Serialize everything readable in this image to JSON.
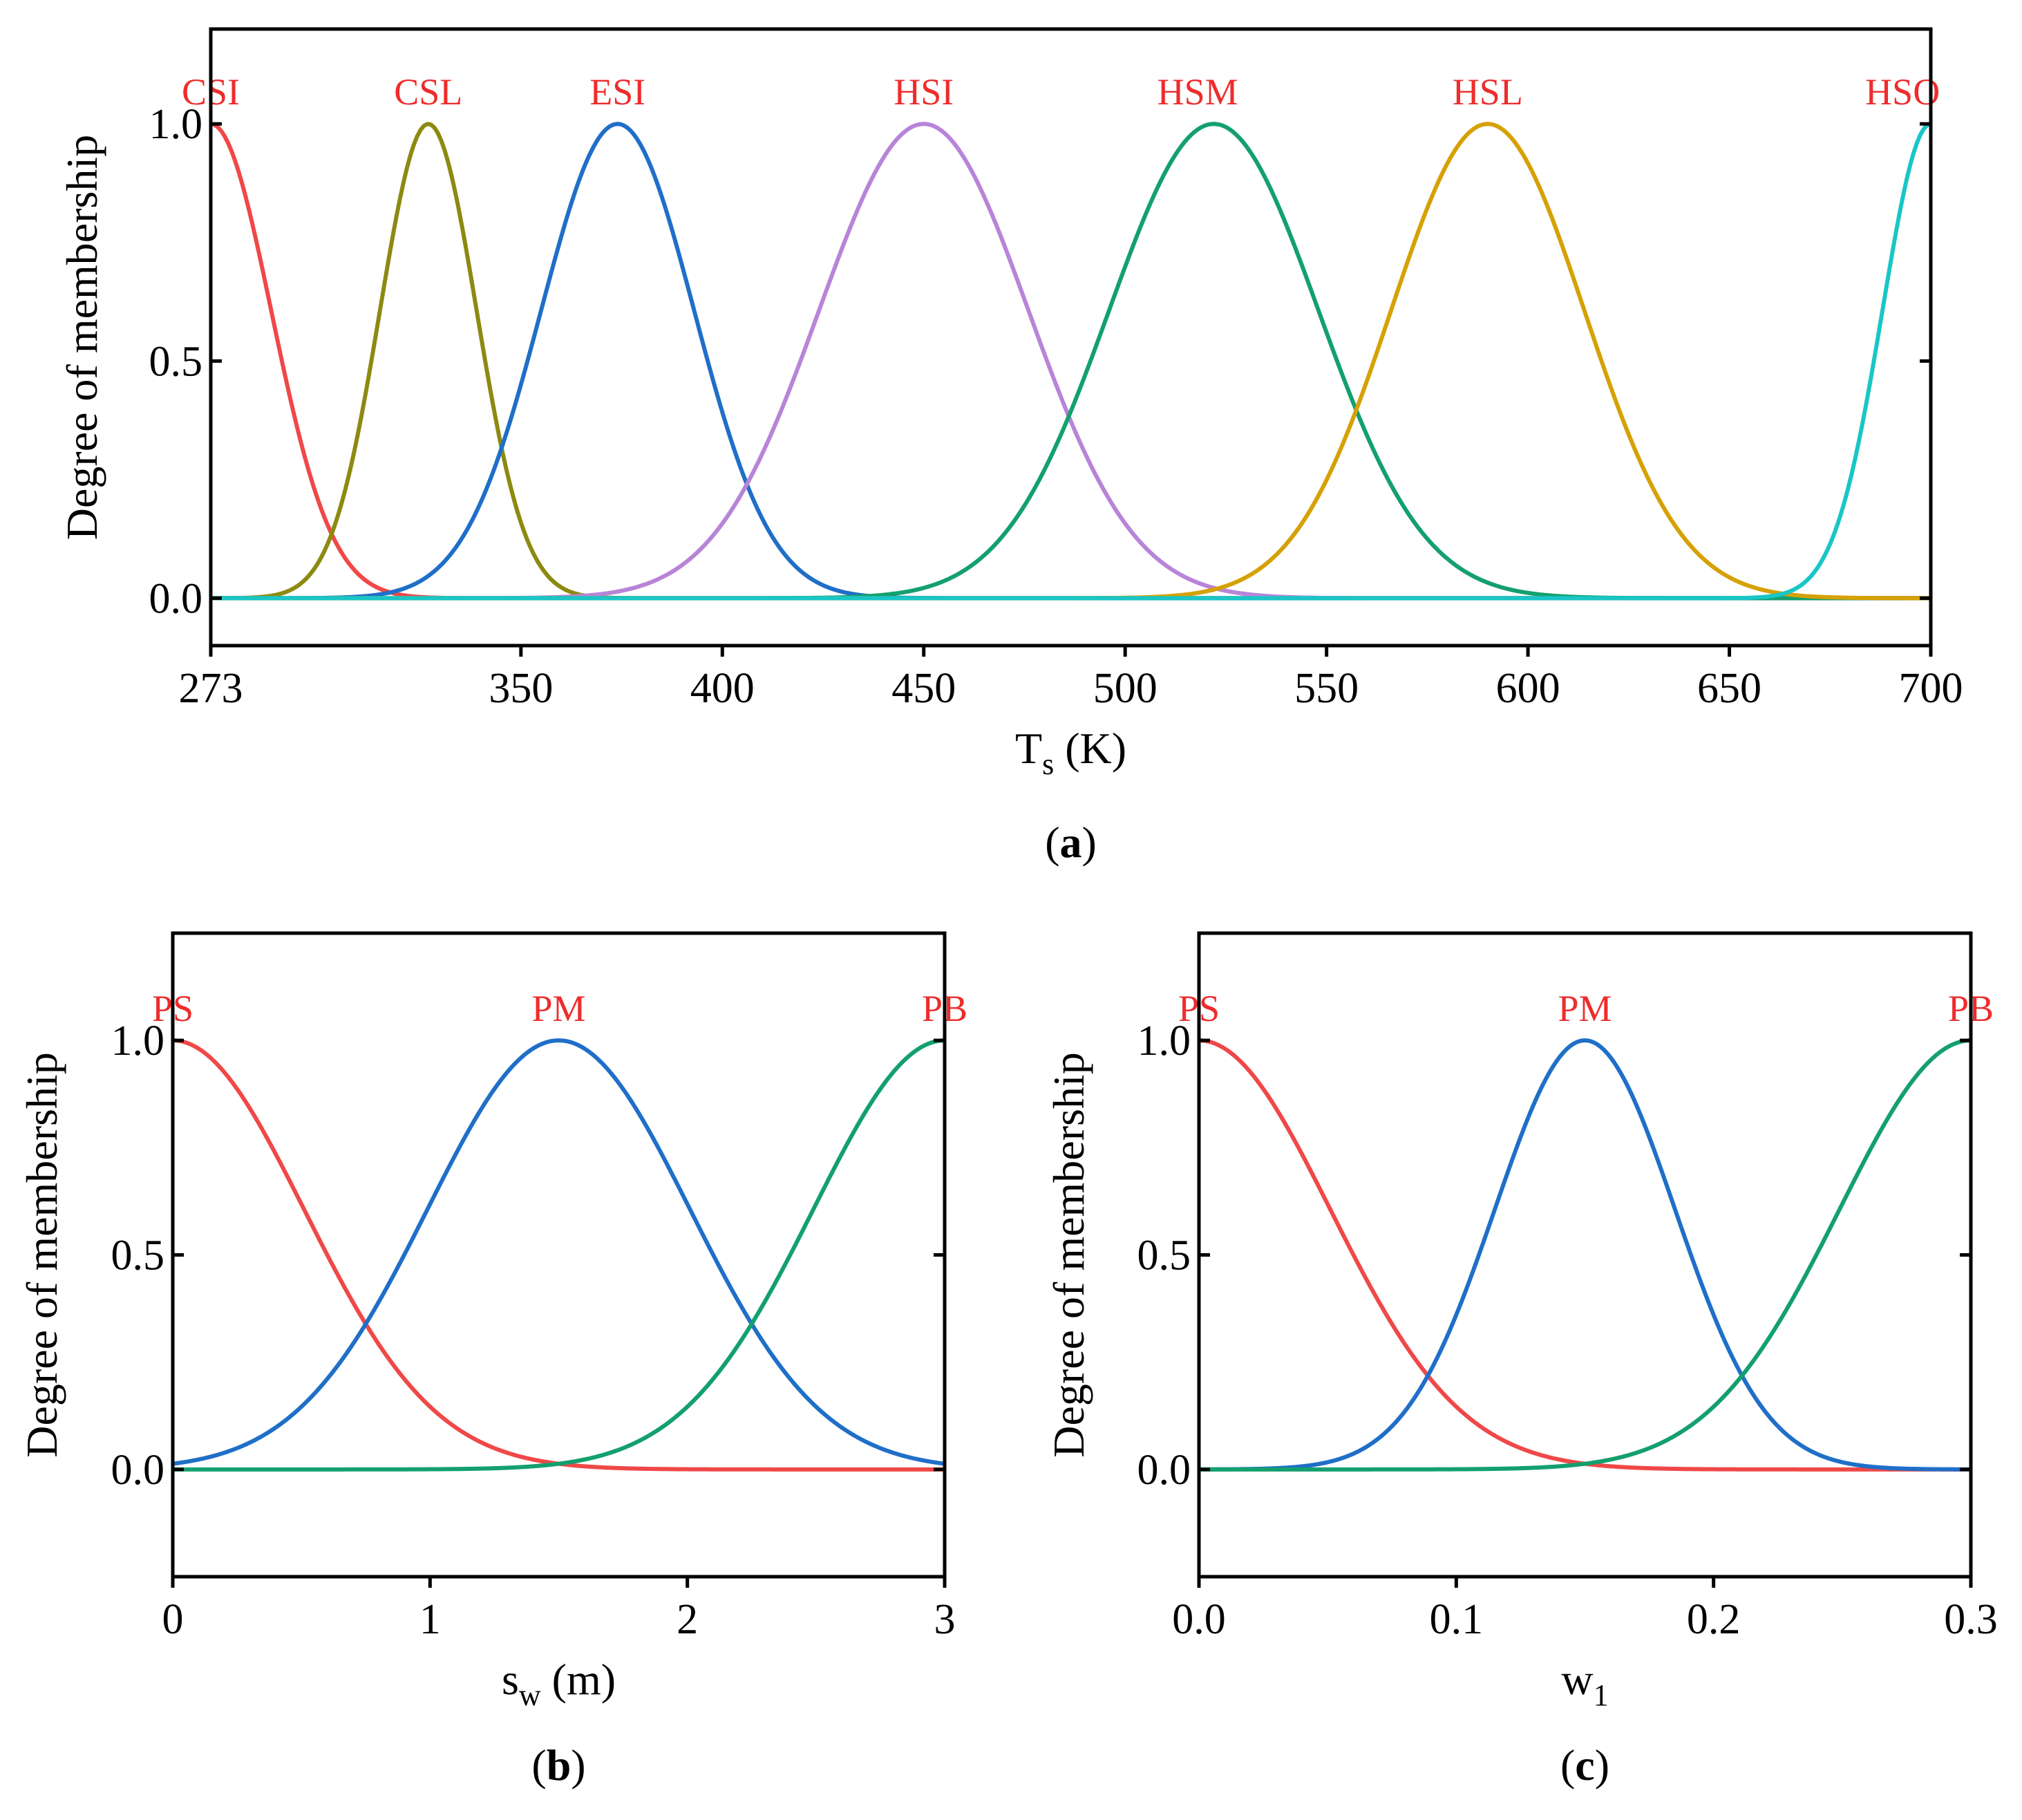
{
  "chart_data": [
    {
      "id": "a",
      "type": "line",
      "caption": "a",
      "xlabel": {
        "main": "T",
        "sub": "s",
        "unit": " (K)"
      },
      "ylabel": "Degree of membership",
      "xlim": [
        273,
        700
      ],
      "ylim": [
        -0.1,
        1.2
      ],
      "xticks": [
        273,
        350,
        400,
        450,
        500,
        550,
        600,
        650,
        700
      ],
      "xtick_labels": [
        "273",
        "350",
        "400",
        "450",
        "500",
        "550",
        "600",
        "650",
        "700"
      ],
      "yticks": [
        0.0,
        0.5,
        1.0
      ],
      "ytick_labels": [
        "0.0",
        "0.5",
        "1.0"
      ],
      "grid": false,
      "series": [
        {
          "name": "CSI",
          "shape": "gaussian",
          "center": 273,
          "sigma": 15,
          "color": "#f04848",
          "label_x": 273
        },
        {
          "name": "CSL",
          "shape": "gaussian",
          "center": 327,
          "sigma": 12,
          "color": "#8c8a10",
          "label_x": 327
        },
        {
          "name": "ESI",
          "shape": "gaussian",
          "center": 374,
          "sigma": 19,
          "color": "#1f6fc8",
          "label_x": 374
        },
        {
          "name": "HSI",
          "shape": "gaussian",
          "center": 450,
          "sigma": 26,
          "color": "#b884d8",
          "label_x": 450
        },
        {
          "name": "HSM",
          "shape": "gaussian",
          "center": 522,
          "sigma": 26,
          "color": "#13a06e",
          "label_x": 518
        },
        {
          "name": "HSL",
          "shape": "gaussian",
          "center": 590,
          "sigma": 24,
          "color": "#d6a104",
          "label_x": 590
        },
        {
          "name": "HSO",
          "shape": "gaussian",
          "center": 700,
          "sigma": 12,
          "color": "#19c6c6",
          "label_x": 693
        }
      ]
    },
    {
      "id": "b",
      "type": "line",
      "caption": "b",
      "xlabel": {
        "main": "s",
        "sub": "w",
        "unit": " (m)"
      },
      "ylabel": "Degree of membership",
      "xlim": [
        0,
        3
      ],
      "ylim": [
        -0.25,
        1.25
      ],
      "xticks": [
        0,
        1,
        2,
        3
      ],
      "xtick_labels": [
        "0",
        "1",
        "2",
        "3"
      ],
      "yticks": [
        0.0,
        0.5,
        1.0
      ],
      "ytick_labels": [
        "0.0",
        "0.5",
        "1.0"
      ],
      "grid": false,
      "series": [
        {
          "name": "PS",
          "shape": "gaussian",
          "center": 0,
          "sigma": 0.51,
          "color": "#f04848",
          "label_x": 0
        },
        {
          "name": "PM",
          "shape": "gaussian",
          "center": 1.5,
          "sigma": 0.51,
          "color": "#1f6fc8",
          "label_x": 1.5
        },
        {
          "name": "PB",
          "shape": "gaussian",
          "center": 3,
          "sigma": 0.51,
          "color": "#13a06e",
          "label_x": 3
        }
      ]
    },
    {
      "id": "c",
      "type": "line",
      "caption": "c",
      "xlabel": {
        "main": "w",
        "sub": "1",
        "unit": ""
      },
      "ylabel": "Degree of membership",
      "xlim": [
        0,
        0.3
      ],
      "ylim": [
        -0.25,
        1.25
      ],
      "xticks": [
        0.0,
        0.1,
        0.2,
        0.3
      ],
      "xtick_labels": [
        "0.0",
        "0.1",
        "0.2",
        "0.3"
      ],
      "yticks": [
        0.0,
        0.5,
        1.0
      ],
      "ytick_labels": [
        "0.0",
        "0.5",
        "1.0"
      ],
      "grid": false,
      "series": [
        {
          "name": "PS",
          "shape": "gaussian",
          "center": 0,
          "sigma": 0.051,
          "color": "#f04848",
          "label_x": 0
        },
        {
          "name": "PM",
          "shape": "gaussian",
          "center": 0.15,
          "sigma": 0.035,
          "color": "#1f6fc8",
          "label_x": 0.15
        },
        {
          "name": "PB",
          "shape": "gaussian",
          "center": 0.3,
          "sigma": 0.051,
          "color": "#13a06e",
          "label_x": 0.3
        }
      ]
    }
  ],
  "style": {
    "label_color": "#ee2c2c",
    "axis_color": "#000000"
  }
}
